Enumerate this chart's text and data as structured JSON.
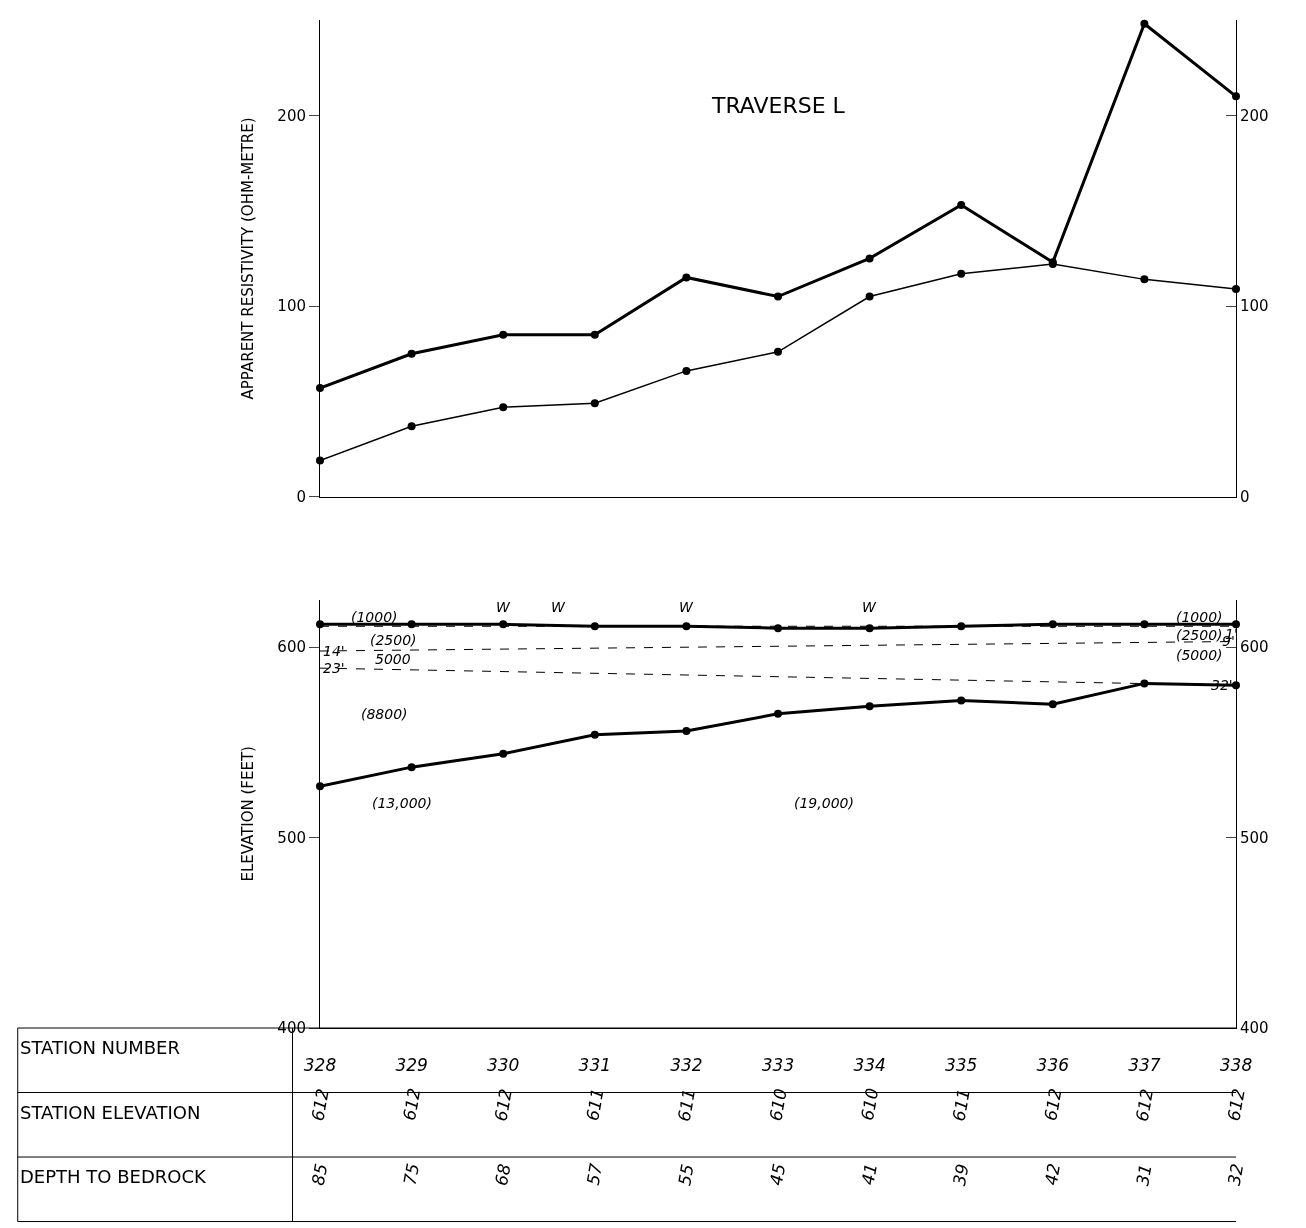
{
  "chart_data": [
    {
      "type": "line",
      "title": "TRAVERSE L",
      "ylabel": "APPARENT RESISTIVITY (OHM-METRE)",
      "x": [
        328,
        329,
        330,
        331,
        332,
        333,
        334,
        335,
        336,
        337,
        338
      ],
      "xlim": [
        328,
        338
      ],
      "ylim": [
        0,
        250
      ],
      "yticks": [
        0,
        100,
        200
      ],
      "y2lim": [
        0,
        250
      ],
      "y2ticks": [
        0,
        100,
        200
      ],
      "tick_labels": "y",
      "marker": "circle",
      "series": [
        {
          "color": "#000000",
          "values": [
            57,
            75,
            85,
            85,
            115,
            105,
            125,
            153,
            123,
            248,
            210
          ]
        },
        {
          "color": "#000000",
          "values": [
            19,
            37,
            47,
            49,
            66,
            76,
            105,
            117,
            122,
            114,
            109
          ]
        }
      ]
    },
    {
      "type": "line",
      "ylabel": "ELEVATION (FEET)",
      "xlabel": "STATION NUMBER",
      "x": [
        328,
        329,
        330,
        331,
        332,
        333,
        334,
        335,
        336,
        337,
        338
      ],
      "xlim": [
        328,
        338
      ],
      "xticks": [
        328,
        329,
        330,
        331,
        332,
        333,
        334,
        335,
        336,
        337,
        338
      ],
      "ylim": [
        400,
        625
      ],
      "yticks": [
        400,
        500,
        600
      ],
      "y2lim": [
        400,
        625
      ],
      "y2ticks": [
        400,
        500,
        600
      ],
      "marker": "circle",
      "series": [
        {
          "color": "#000000",
          "values": [
            612,
            612,
            612,
            611,
            611,
            610,
            610,
            611,
            612,
            612,
            612
          ]
        },
        {
          "color": "#000000",
          "values": [
            527,
            537,
            544,
            554,
            556,
            565,
            569,
            572,
            570,
            581,
            580
          ]
        },
        {
          "color": "#000000",
          "values": [
            611,
            null,
            null,
            null,
            null,
            null,
            null,
            null,
            null,
            null,
            611
          ],
          "line_style": "dashed",
          "marker": "none"
        },
        {
          "color": "#000000",
          "values": [
            598,
            null,
            null,
            null,
            null,
            null,
            null,
            null,
            null,
            null,
            603
          ],
          "line_style": "dashed",
          "marker": "none"
        },
        {
          "color": "#000000",
          "values": [
            589,
            null,
            null,
            null,
            null,
            null,
            null,
            null,
            null,
            null,
            580
          ],
          "line_style": "dashed",
          "marker": "none"
        }
      ],
      "annotations": [
        "W",
        "W",
        "W",
        "W",
        "(1000)",
        "(2500)",
        "5000",
        "(8800)",
        "(13,000)",
        "(19,000)",
        "(1000)",
        "(2500)",
        "(5000)",
        "1'",
        {
          "text": "14'",
          "x": 328.15,
          "y": 598
        },
        {
          "text": "23'",
          "x": 328.15,
          "y": 589
        },
        {
          "text": "9'",
          "x": 337.92,
          "y": 603
        },
        {
          "text": "32'",
          "x": 337.85,
          "y": 580
        },
        "STATION ELEVATION",
        "612",
        "612",
        "612",
        "611",
        "611",
        "610",
        "610",
        "611",
        "612",
        "612",
        "612",
        "DEPTH TO BEDROCK",
        "85",
        "75",
        "68",
        "57",
        "55",
        "45",
        "41",
        "39",
        "42",
        "31",
        "32"
      ]
    }
  ]
}
